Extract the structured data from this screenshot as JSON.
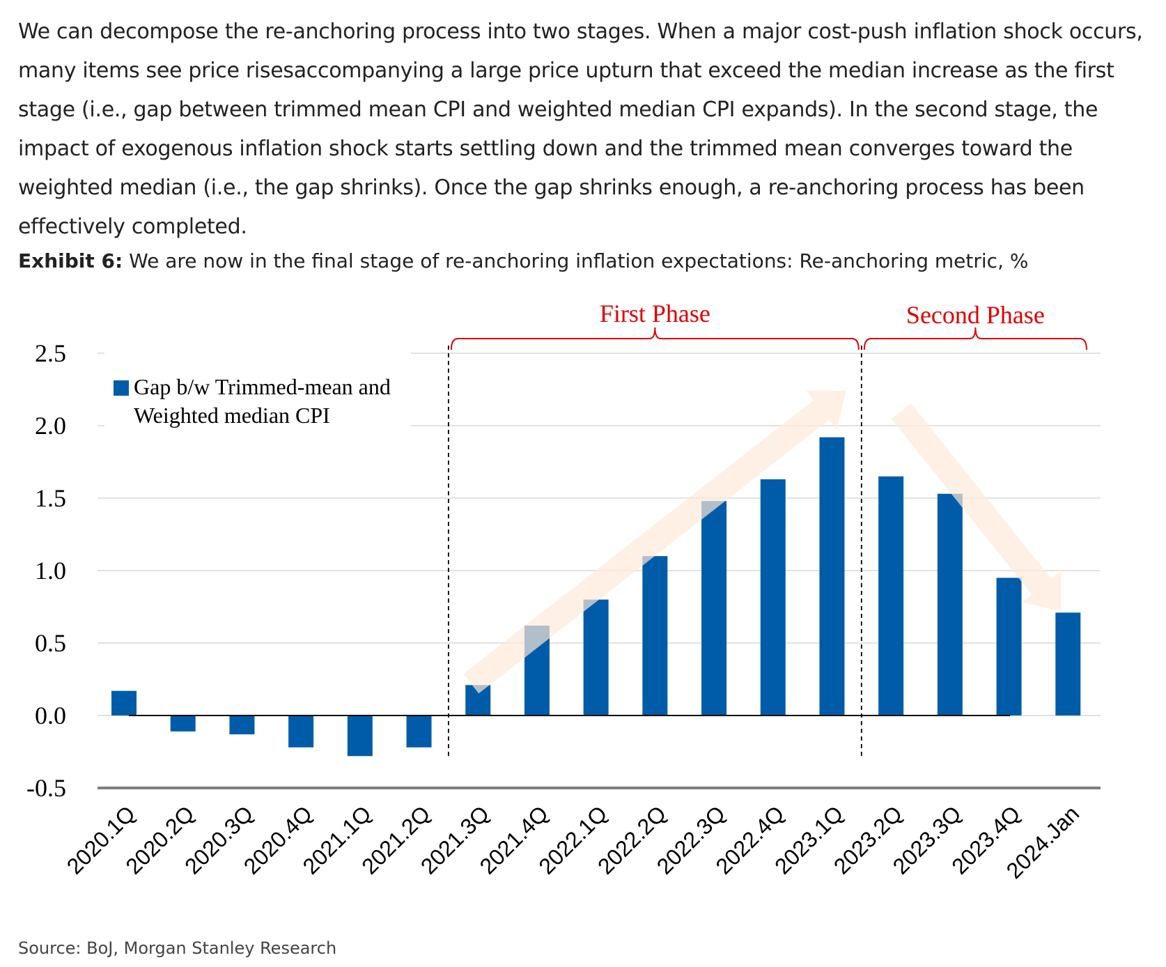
{
  "intro_text": "We can decompose the re-anchoring process into two stages. When a major cost-push inflation shock occurs, many items see price risesaccompanying a large price upturn that exceed the median increase as the first stage (i.e., gap between trimmed mean CPI and weighted median CPI expands). In the second stage, the impact of exogenous inflation shock starts settling down and the trimmed mean converges toward the weighted median (i.e., the gap shrinks). Once the gap shrinks enough, a re-anchoring process has been effectively completed.",
  "exhibit": {
    "label": "Exhibit 6:",
    "title": "We are now in the final stage of re-anchoring inflation expectations: Re-anchoring metric, %"
  },
  "source": "Source: BoJ, Morgan Stanley Research",
  "colors": {
    "bar": "#005ca9",
    "annotation": "#e00000",
    "arrow": "#fde9d9",
    "grid": "#d9d9d9",
    "axis": "#7f7f7f"
  },
  "chart_data": {
    "type": "bar",
    "categories": [
      "2020.1Q",
      "2020.2Q",
      "2020.3Q",
      "2020.4Q",
      "2021.1Q",
      "2021.2Q",
      "2021.3Q",
      "2021.4Q",
      "2022.1Q",
      "2022.2Q",
      "2022.3Q",
      "2022.4Q",
      "2023.1Q",
      "2023.2Q",
      "2023.3Q",
      "2023.4Q",
      "2024.Jan"
    ],
    "series": [
      {
        "name": "Gap b/w Trimmed-mean and Weighted median CPI",
        "values": [
          0.17,
          -0.11,
          -0.13,
          -0.22,
          -0.28,
          -0.22,
          0.21,
          0.62,
          0.8,
          1.1,
          1.48,
          1.63,
          1.92,
          1.65,
          1.53,
          0.95,
          0.71
        ]
      }
    ],
    "legend_lines": [
      "Gap b/w Trimmed-mean and",
      "Weighted median CPI"
    ],
    "ylim": [
      -0.5,
      2.5
    ],
    "yticks": [
      "2.5",
      "2.0",
      "1.5",
      "1.0",
      "0.5",
      "0.0",
      "-0.5"
    ],
    "ytick_values": [
      2.5,
      2.0,
      1.5,
      1.0,
      0.5,
      0.0,
      -0.5
    ],
    "grid": true,
    "legend_position": "top-left",
    "phases": [
      {
        "label": "First Phase",
        "start": "2021.3Q",
        "end": "2023.1Q"
      },
      {
        "label": "Second Phase",
        "start": "2023.2Q",
        "end": "2024.Jan"
      }
    ]
  }
}
